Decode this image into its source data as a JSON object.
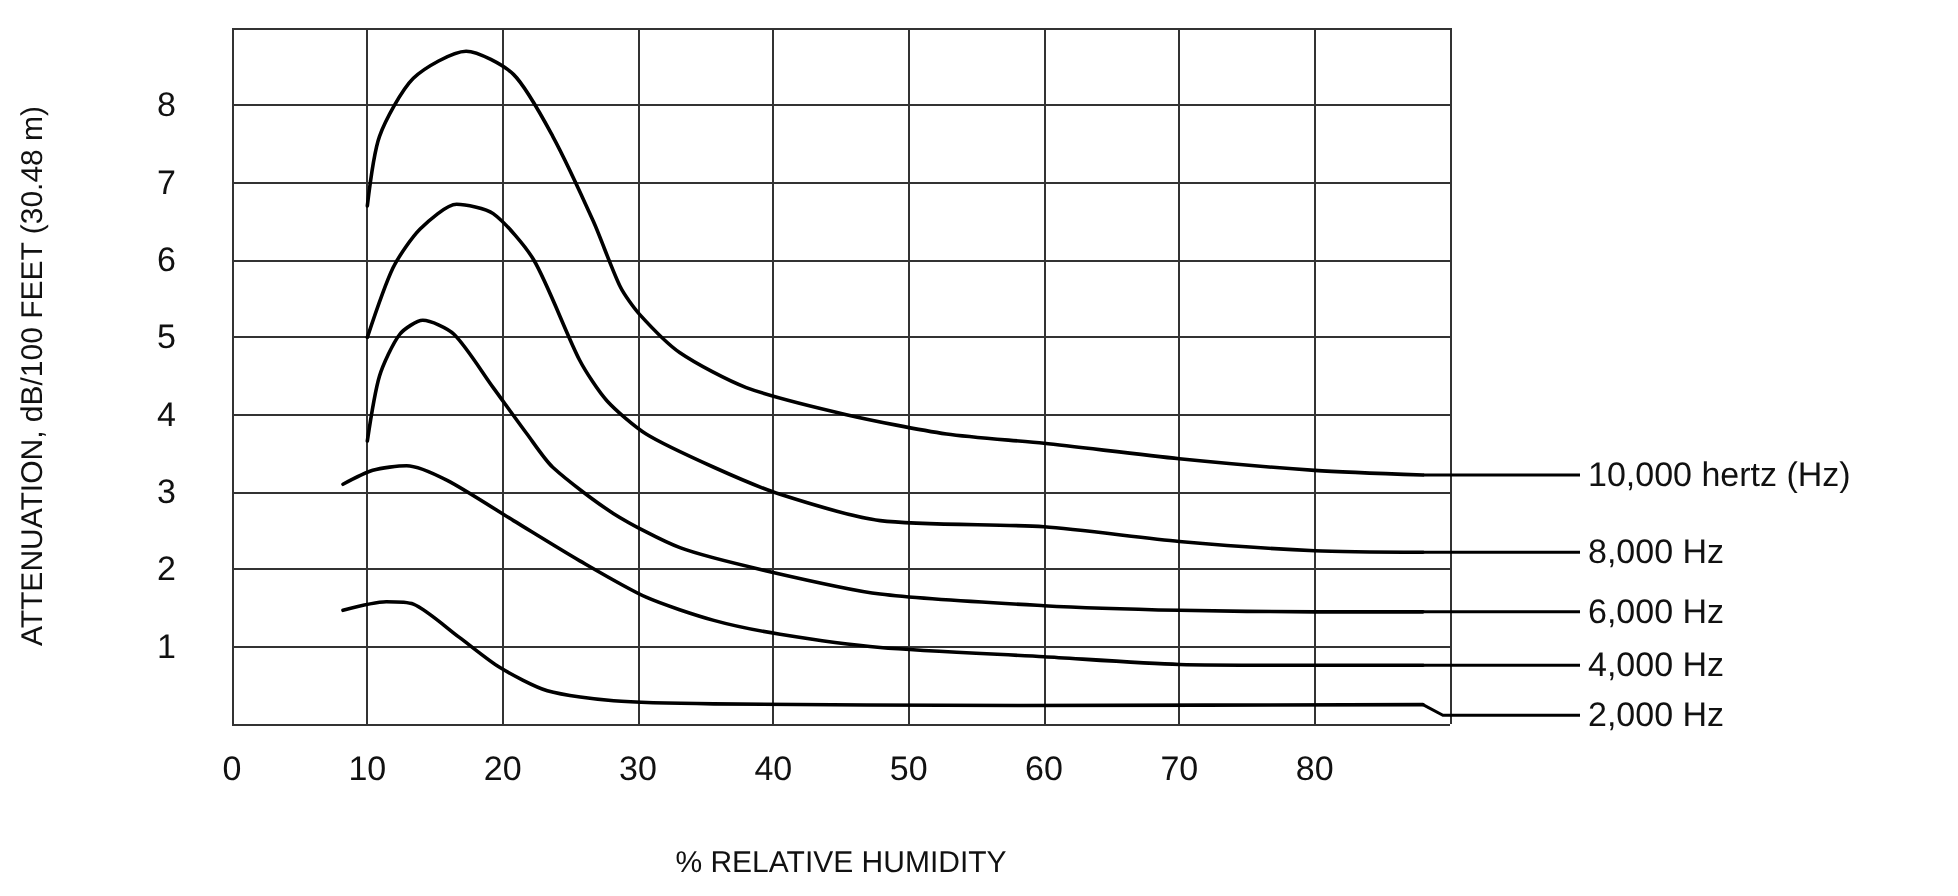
{
  "chart_data": {
    "type": "line",
    "xlabel": "% RELATIVE HUMIDITY",
    "ylabel": "ATTENUATION, dB/100 FEET (30.48 m)",
    "xlim": [
      0,
      90
    ],
    "xticks": [
      0,
      10,
      20,
      30,
      40,
      50,
      60,
      70,
      80,
      {
        "value": 90,
        "label": null
      }
    ],
    "ylim": [
      0,
      9
    ],
    "yticks": [
      {
        "value": 0,
        "label": null
      },
      1,
      2,
      3,
      4,
      5,
      6,
      7,
      8,
      {
        "value": 9,
        "label": null
      }
    ],
    "grid": true,
    "legend": "right",
    "marker": "none",
    "line_style": "solid",
    "series": [
      {
        "name": "10,000 hertz (Hz)",
        "color": "#000000",
        "x": [
          10,
          10.9,
          13.4,
          17.3,
          20.8,
          23.7,
          26.7,
          28.7,
          30.1,
          33.1,
          38,
          45.4,
          52.8,
          60,
          70,
          80,
          88
        ],
        "values": [
          6.7,
          7.6,
          8.35,
          8.7,
          8.4,
          7.6,
          6.5,
          5.65,
          5.3,
          4.8,
          4.35,
          4.0,
          3.75,
          3.63,
          3.43,
          3.28,
          3.22
        ]
      },
      {
        "name": "8,000 Hz",
        "color": "#000000",
        "x": [
          10,
          11.9,
          13.9,
          16.6,
          19.3,
          22.3,
          25.7,
          27.7,
          30.6,
          35.6,
          40.5,
          47.9,
          60,
          70,
          80,
          88
        ],
        "values": [
          5.0,
          5.9,
          6.4,
          6.72,
          6.6,
          6.0,
          4.7,
          4.18,
          3.75,
          3.32,
          2.97,
          2.63,
          2.55,
          2.36,
          2.24,
          2.22
        ]
      },
      {
        "name": "6,000 Hz",
        "color": "#000000",
        "x": [
          10,
          10.9,
          12.4,
          14.1,
          16.4,
          19.3,
          21.8,
          23.7,
          28.2,
          33.1,
          39.5,
          47.9,
          60,
          70,
          80,
          88
        ],
        "values": [
          3.66,
          4.5,
          5.04,
          5.22,
          5.04,
          4.35,
          3.75,
          3.32,
          2.72,
          2.28,
          1.98,
          1.68,
          1.53,
          1.47,
          1.45,
          1.45
        ]
      },
      {
        "name": "4,000 Hz",
        "color": "#000000",
        "x": [
          8.2,
          10.4,
          12.9,
          15.9,
          20.8,
          25.7,
          30.6,
          35.6,
          40.5,
          47.9,
          60,
          70,
          80,
          88
        ],
        "values": [
          3.1,
          3.28,
          3.34,
          3.15,
          2.63,
          2.11,
          1.64,
          1.34,
          1.16,
          0.99,
          0.87,
          0.77,
          0.76,
          0.76
        ]
      },
      {
        "name": "2,000 Hz",
        "color": "#000000",
        "x": [
          8.2,
          11.4,
          13.4,
          16.8,
          19.8,
          23.3,
          28.2,
          35.6,
          58.2,
          88
        ],
        "values": [
          1.47,
          1.58,
          1.55,
          1.12,
          0.73,
          0.43,
          0.3,
          0.26,
          0.24,
          0.25
        ]
      }
    ]
  }
}
